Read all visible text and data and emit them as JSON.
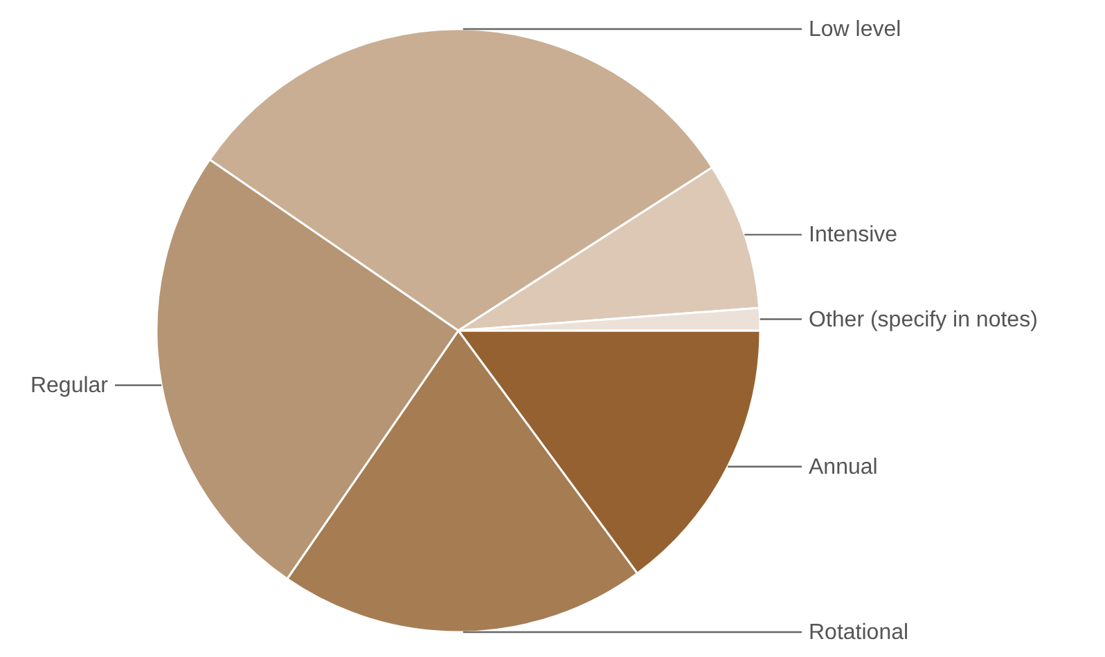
{
  "chart_data": {
    "type": "pie",
    "categories": [
      "Annual",
      "Rotational",
      "Regular",
      "Low level",
      "Intensive",
      "Other (specify in notes)"
    ],
    "values": [
      14.9,
      19.7,
      25.0,
      31.3,
      7.9,
      1.2
    ],
    "colors": [
      "#956131",
      "#a67c52",
      "#b69574",
      "#c9ae93",
      "#dcc8b5",
      "#ebe1d8"
    ]
  }
}
